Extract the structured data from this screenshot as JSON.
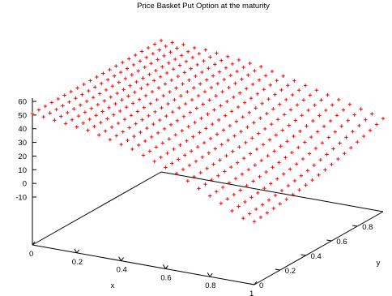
{
  "chart_data": {
    "type": "surface-3d-points",
    "title": "Price Basket Put Option at the maturity",
    "xlabel": "x",
    "ylabel": "y",
    "zlabel": "",
    "xlim": [
      0,
      1
    ],
    "ylim": [
      0,
      1
    ],
    "zlim": [
      -20,
      60
    ],
    "x_ticks": [
      "0",
      "0.2",
      "0.4",
      "0.6",
      "0.8",
      "1"
    ],
    "y_ticks": [
      "0",
      "0.2",
      "0.4",
      "0.6",
      "0.8"
    ],
    "z_ticks": [
      "60",
      "50",
      "40",
      "30",
      "20",
      "10",
      "0",
      "-10"
    ],
    "marker": "+",
    "marker_color": "#ff0000",
    "axis_color": "#000000",
    "grid": false,
    "legend": "none",
    "series": [
      {
        "grid_points": 21,
        "x_values": [
          0,
          0.05,
          0.1,
          0.15,
          0.2,
          0.25,
          0.3,
          0.35,
          0.4,
          0.45,
          0.5,
          0.55,
          0.6,
          0.65,
          0.7,
          0.75,
          0.8,
          0.85,
          0.9,
          0.95,
          1
        ],
        "y_values": [
          0,
          0.05,
          0.1,
          0.15,
          0.2,
          0.25,
          0.3,
          0.35,
          0.4,
          0.45,
          0.5,
          0.55,
          0.6,
          0.65,
          0.7,
          0.75,
          0.8,
          0.85,
          0.9,
          0.95,
          1
        ],
        "z_at_x_over_y_0": [
          50,
          49,
          48,
          47,
          46,
          45,
          43,
          41,
          39,
          37,
          34,
          31,
          28,
          25,
          21,
          17,
          13,
          9,
          5,
          1,
          0
        ],
        "z_at_x_over_y_1": [
          50,
          50,
          50,
          49,
          49,
          48,
          47,
          46,
          45,
          44,
          42,
          40,
          38,
          36,
          34,
          32,
          30,
          28,
          26,
          24,
          22
        ]
      }
    ]
  }
}
